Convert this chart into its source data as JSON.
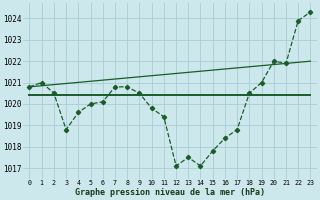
{
  "background_color": "#cce8ec",
  "grid_color": "#aaccd4",
  "line_color": "#1a5c2a",
  "x_labels": [
    "0",
    "1",
    "2",
    "3",
    "4",
    "5",
    "6",
    "7",
    "8",
    "9",
    "10",
    "11",
    "12",
    "13",
    "14",
    "15",
    "16",
    "17",
    "18",
    "19",
    "20",
    "21",
    "22",
    "23"
  ],
  "xlabel": "Graphe pression niveau de la mer (hPa)",
  "ylim": [
    1016.5,
    1024.7
  ],
  "yticks": [
    1017,
    1018,
    1019,
    1020,
    1021,
    1022,
    1023,
    1024
  ],
  "series_marker": {
    "x": [
      0,
      1,
      2,
      3,
      4,
      5,
      6,
      7,
      8,
      9,
      10,
      11,
      12,
      13,
      14,
      15,
      16,
      17,
      18,
      19,
      20,
      21,
      22,
      23
    ],
    "y": [
      1020.8,
      1021.0,
      1020.5,
      1018.8,
      1019.6,
      1020.0,
      1020.1,
      1020.8,
      1020.8,
      1020.5,
      1019.8,
      1019.4,
      1017.1,
      1017.5,
      1017.1,
      1017.8,
      1018.4,
      1018.8,
      1020.5,
      1021.0,
      1022.0,
      1021.9,
      1023.9,
      1024.3
    ]
  },
  "series_flat": {
    "x": [
      0,
      23
    ],
    "y": [
      1020.4,
      1020.4
    ]
  },
  "series_trend": {
    "x": [
      0,
      23
    ],
    "y": [
      1020.8,
      1022.0
    ]
  },
  "figsize": [
    3.2,
    2.0
  ],
  "dpi": 100
}
